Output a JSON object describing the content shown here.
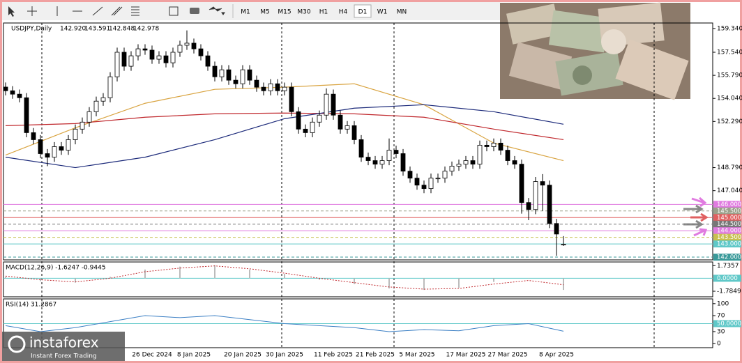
{
  "toolbar": {
    "timeframes": [
      "M1",
      "M5",
      "M15",
      "M30",
      "H1",
      "H4",
      "D1",
      "W1",
      "MN"
    ],
    "active": "D1"
  },
  "branding": {
    "logo": "instaforex",
    "tagline": "Instant Forex Trading"
  },
  "chart_data": [
    {
      "type": "candlestick",
      "title": "USDJPY,Daily",
      "header_values": [
        "142.920",
        "143.591",
        "142.848",
        "142.978"
      ],
      "categories": [
        null,
        null,
        null,
        null,
        null,
        null,
        null,
        null,
        null,
        null,
        null,
        null,
        null,
        null,
        null,
        null,
        null,
        null,
        null,
        null,
        null,
        "26 Dec 2024",
        null,
        null,
        null,
        null,
        null,
        "8 Jan 2025",
        null,
        null,
        null,
        null,
        null,
        null,
        "20 Jan 2025",
        null,
        null,
        null,
        null,
        null,
        "30 Jan 2025",
        null,
        null,
        null,
        null,
        null,
        null,
        "11 Feb 2025",
        null,
        null,
        null,
        null,
        null,
        "21 Feb 2025",
        null,
        null,
        null,
        null,
        null,
        "5 Mar 2025",
        null,
        null,
        null,
        null,
        null,
        null,
        "17 Mar 2025",
        null,
        null,
        null,
        null,
        null,
        "27 Mar 2025",
        null,
        null,
        null,
        null,
        null,
        null,
        "8 Apr 2025",
        null
      ],
      "open": [
        154.9,
        154.62,
        154.36,
        154.09,
        151.44,
        150.91,
        149.85,
        149.58,
        150.38,
        150.11,
        150.91,
        151.71,
        152.24,
        153.03,
        153.83,
        154.09,
        155.68,
        157.54,
        156.48,
        157.27,
        157.8,
        157.7,
        157.01,
        157.27,
        156.74,
        157.54,
        158.07,
        158.23,
        157.8,
        157.27,
        156.48,
        155.68,
        156.21,
        155.42,
        155.15,
        156.21,
        155.42,
        154.89,
        154.62,
        155.15,
        154.62,
        154.89,
        153.03,
        151.71,
        151.44,
        152.24,
        152.77,
        154.36,
        152.77,
        151.71,
        151.97,
        150.91,
        149.58,
        149.32,
        149.05,
        149.32,
        150.11,
        149.85,
        148.52,
        147.99,
        147.46,
        147.2,
        147.99,
        147.99,
        148.52,
        148.9,
        149.05,
        149.32,
        149.05,
        150.49,
        150.38,
        150.65,
        150.11,
        149.32,
        149.05,
        146.14,
        145.61,
        147.73,
        147.46,
        144.55,
        142.92
      ],
      "high": [
        155.25,
        154.97,
        154.71,
        154.44,
        151.79,
        151.26,
        150.2,
        150.73,
        150.73,
        151.26,
        152.06,
        152.59,
        153.38,
        154.18,
        154.44,
        156.03,
        157.89,
        157.89,
        157.62,
        158.15,
        158.15,
        158.05,
        157.62,
        157.62,
        157.89,
        158.42,
        159.2,
        158.58,
        158.15,
        157.62,
        156.83,
        156.56,
        156.56,
        155.77,
        156.56,
        156.56,
        155.77,
        155.24,
        155.5,
        155.5,
        155.24,
        155.24,
        153.38,
        152.06,
        152.59,
        153.12,
        154.8,
        154.71,
        153.12,
        152.32,
        152.32,
        151.26,
        149.93,
        149.67,
        149.67,
        151.0,
        150.46,
        150.2,
        148.87,
        148.34,
        147.81,
        148.34,
        148.34,
        148.87,
        149.25,
        149.4,
        149.67,
        149.67,
        150.84,
        150.84,
        151.0,
        151.0,
        150.46,
        149.67,
        149.4,
        146.49,
        148.08,
        148.3,
        147.81,
        144.9,
        143.591
      ],
      "low": [
        154.27,
        154.01,
        153.74,
        151.09,
        150.56,
        149.5,
        148.9,
        149.23,
        149.76,
        149.76,
        150.56,
        151.36,
        151.89,
        152.68,
        153.48,
        153.74,
        155.33,
        156.13,
        156.13,
        156.92,
        157.35,
        156.66,
        156.66,
        156.39,
        156.39,
        157.19,
        157.72,
        157.45,
        156.92,
        156.13,
        155.33,
        155.33,
        155.07,
        154.8,
        154.8,
        155.07,
        154.54,
        154.27,
        154.27,
        154.27,
        154.27,
        152.68,
        151.36,
        151.09,
        151.09,
        151.89,
        152.42,
        152.42,
        151.36,
        151.36,
        150.56,
        149.23,
        148.97,
        148.7,
        148.7,
        148.97,
        149.5,
        148.17,
        147.64,
        147.11,
        146.85,
        146.85,
        147.64,
        147.64,
        148.17,
        148.55,
        148.7,
        148.7,
        148.7,
        150.03,
        150.03,
        149.76,
        148.97,
        148.7,
        145.3,
        144.8,
        145.26,
        145.5,
        144.2,
        142.1,
        142.848
      ],
      "close": [
        154.62,
        154.36,
        154.09,
        151.44,
        150.91,
        149.85,
        149.58,
        150.38,
        150.11,
        150.91,
        151.71,
        152.24,
        153.03,
        153.83,
        154.09,
        155.68,
        157.54,
        156.48,
        157.27,
        157.8,
        157.7,
        157.01,
        157.27,
        156.74,
        157.54,
        158.07,
        158.23,
        157.8,
        157.27,
        156.48,
        155.68,
        156.21,
        155.42,
        155.15,
        156.21,
        155.42,
        154.89,
        154.62,
        155.15,
        154.62,
        154.89,
        153.03,
        151.71,
        151.44,
        152.24,
        152.77,
        154.36,
        152.77,
        151.71,
        151.97,
        150.91,
        149.58,
        149.32,
        149.05,
        149.32,
        150.11,
        149.85,
        148.52,
        147.99,
        147.46,
        147.2,
        147.99,
        147.99,
        148.52,
        148.9,
        149.05,
        149.32,
        149.05,
        150.49,
        150.38,
        150.65,
        150.11,
        149.32,
        149.05,
        146.14,
        145.61,
        147.73,
        147.46,
        144.55,
        143.75,
        142.978
      ],
      "up_color": "#ffffff",
      "down_color": "#000000",
      "ylim": [
        141.79,
        159.76
      ],
      "yticks": [
        {
          "value": 159.34,
          "label": "159.340"
        },
        {
          "value": 157.54,
          "label": "157.540"
        },
        {
          "value": 155.79,
          "label": "155.790"
        },
        {
          "value": 154.04,
          "label": "154.040"
        },
        {
          "value": 152.29,
          "label": "152.290"
        },
        {
          "value": 148.79,
          "label": "148.790"
        },
        {
          "value": 147.04,
          "label": "147.040"
        }
      ],
      "overlays": [
        {
          "color": "#d9a441",
          "x": [
            0,
            10,
            20,
            30,
            40,
            50,
            60,
            70,
            80
          ],
          "values": [
            149.74,
            151.81,
            153.67,
            154.73,
            154.89,
            155.15,
            153.56,
            150.65,
            149.32
          ]
        },
        {
          "color": "#c0282d",
          "x": [
            0,
            10,
            20,
            30,
            40,
            50,
            60,
            70,
            80
          ],
          "values": [
            151.97,
            152.13,
            152.61,
            152.87,
            152.93,
            152.87,
            152.61,
            151.71,
            150.91
          ]
        },
        {
          "color": "#1c2a7a",
          "x": [
            0,
            10,
            20,
            30,
            40,
            50,
            60,
            70,
            80
          ],
          "values": [
            149.58,
            148.79,
            149.58,
            150.91,
            152.5,
            153.3,
            153.56,
            153.03,
            152.08
          ]
        }
      ],
      "levels": [
        {
          "value": 146,
          "label": "146.000",
          "color": "#e07be0"
        },
        {
          "value": 145.5,
          "label": "145.500",
          "color": "#9aa08a"
        },
        {
          "value": 145,
          "label": "145.000",
          "color": "#e06060"
        },
        {
          "value": 144.5,
          "label": "144.500",
          "color": "#777777"
        },
        {
          "value": 144,
          "label": "144.000",
          "color": "#e07be0"
        },
        {
          "value": 143.5,
          "label": "143.500",
          "color": "#c8c050"
        },
        {
          "value": 143,
          "label": "143.000",
          "color": "#5fc8c8"
        },
        {
          "value": 142,
          "label": "142.000",
          "color": "#3a9a9a"
        }
      ]
    },
    {
      "type": "macd",
      "title": "MACD(12,26,9) -1.6247 -0.9445",
      "x": [
        0,
        5,
        10,
        15,
        20,
        25,
        30,
        35,
        40,
        45,
        50,
        55,
        60,
        65,
        70,
        75,
        80
      ],
      "histogram": [
        0.2,
        -0.4,
        -0.6,
        0.2,
        1.2,
        1.6,
        1.8,
        1.2,
        0.6,
        -0.2,
        -0.8,
        -1.4,
        -1.6,
        -1.3,
        -0.5,
        0.0,
        -1.6
      ],
      "signal": [
        0.3,
        -0.2,
        -0.5,
        0.0,
        0.9,
        1.4,
        1.7,
        1.3,
        0.7,
        0.0,
        -0.6,
        -1.2,
        -1.5,
        -1.4,
        -0.8,
        -0.3,
        -0.9
      ],
      "ylim": [
        -2.55,
        2.24
      ],
      "yticks": [
        {
          "value": 1.7357,
          "label": "1.7357"
        },
        {
          "value": -1.7849,
          "label": "-1.7849"
        }
      ],
      "levels": [
        {
          "value": 0,
          "label": "0.0000",
          "color": "#5fc8c8"
        }
      ]
    },
    {
      "type": "rsi",
      "title": "RSI(14) 31.2867",
      "x": [
        0,
        5,
        10,
        15,
        20,
        25,
        30,
        35,
        40,
        45,
        50,
        55,
        60,
        65,
        70,
        75,
        80
      ],
      "values": [
        45,
        30,
        40,
        55,
        70,
        65,
        70,
        60,
        50,
        45,
        40,
        30,
        35,
        32,
        45,
        50,
        31
      ],
      "color": "#3b7fc4",
      "ylim": [
        -10.2,
        111.9
      ],
      "yticks": [
        100,
        70,
        30,
        0
      ],
      "levels": [
        {
          "value": 50,
          "label": "50.0000",
          "color": "#5fc8c8"
        }
      ]
    }
  ]
}
